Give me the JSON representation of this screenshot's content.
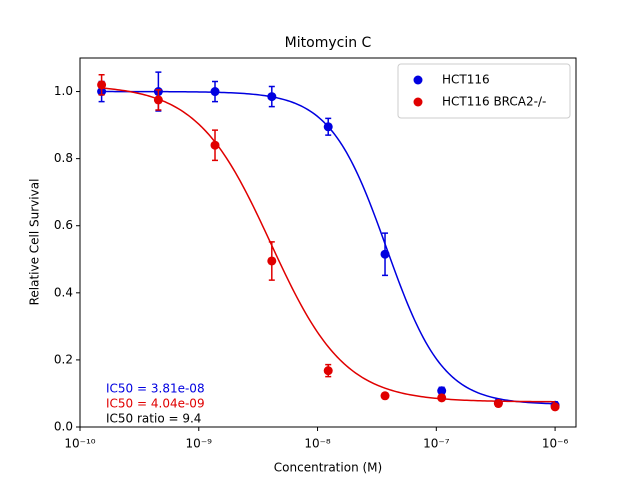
{
  "chart_data": {
    "type": "scatter",
    "title": "Mitomycin C",
    "x_label": "Concentration (M)",
    "y_label": "Relative Cell Survival",
    "x_scale": "log",
    "xlim": [
      1e-10,
      1.5e-06
    ],
    "xticks": [
      {
        "value": 1e-10,
        "label": "10⁻¹⁰"
      },
      {
        "value": 1e-09,
        "label": "10⁻⁹"
      },
      {
        "value": 1e-08,
        "label": "10⁻⁸"
      },
      {
        "value": 1e-07,
        "label": "10⁻⁷"
      },
      {
        "value": 1e-06,
        "label": "10⁻⁶"
      }
    ],
    "ylim": [
      0,
      1.1
    ],
    "yticks": [
      {
        "value": 0,
        "label": "0.0"
      },
      0.2,
      0.4,
      0.6,
      0.8,
      {
        "value": 1,
        "label": "1.0"
      }
    ],
    "legend": "upper right",
    "x": [
      1.52e-10,
      4.57e-10,
      1.37e-09,
      4.12e-09,
      1.23e-08,
      3.7e-08,
      1.11e-07,
      3.33e-07,
      1e-06
    ],
    "series": [
      {
        "name": "HCT116",
        "color": "#0000e0",
        "values": [
          1.0,
          1.0,
          1.0,
          0.985,
          0.895,
          0.515,
          0.108,
          0.072,
          0.065
        ],
        "errors": [
          0.03,
          0.058,
          0.03,
          0.03,
          0.025,
          0.063,
          0.01,
          0.01,
          0.01
        ],
        "fit": {
          "top": 1.0,
          "bottom": 0.067,
          "ic50": 3.81e-08,
          "hill": 1.83
        }
      },
      {
        "name": "HCT116 BRCA2-/-",
        "color": "#e00000",
        "values": [
          1.02,
          0.975,
          0.84,
          0.495,
          0.168,
          0.093,
          0.087,
          0.07,
          0.06
        ],
        "errors": [
          0.03,
          0.03,
          0.045,
          0.057,
          0.018,
          0.008,
          0.008,
          0.008,
          0.008
        ],
        "fit": {
          "top": 1.02,
          "bottom": 0.075,
          "ic50": 4.04e-09,
          "hill": 1.4
        }
      }
    ],
    "annotations": [
      {
        "text": "IC50 = 3.81e-08",
        "color": "#0000e0"
      },
      {
        "text": "IC50 = 4.04e-09",
        "color": "#e00000"
      },
      {
        "text": "IC50 ratio = 9.4",
        "color": "#000000"
      }
    ]
  }
}
